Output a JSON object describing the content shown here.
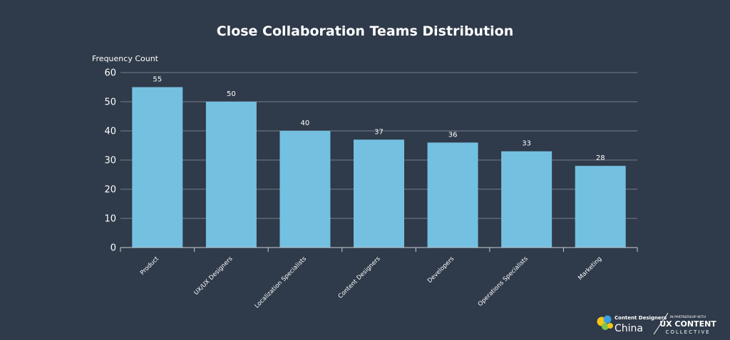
{
  "chart_data": {
    "type": "bar",
    "title": "Close Collaboration Teams Distribution",
    "ylabel": "Frequency Count",
    "xlabel": "",
    "ylim": [
      0,
      60
    ],
    "yticks": [
      0,
      10,
      20,
      30,
      40,
      50,
      60
    ],
    "grid": true,
    "categories": [
      "Product",
      "UX/UX Designers",
      "Localization Specialists",
      "Content Designers",
      "Developers",
      "Operations Specialists",
      "Marketing"
    ],
    "values": [
      55,
      50,
      40,
      37,
      36,
      33,
      28
    ],
    "data_labels": [
      "55",
      "50",
      "40",
      "37",
      "36",
      "33",
      "28"
    ],
    "bar_color": "#74c0e0",
    "background_color": "#2f3a4a",
    "gridline_color": "#8e97a3"
  },
  "logos": {
    "left_top": "Content Designers",
    "left_bottom": "China",
    "right_small": "IN PARTNERSHIP WITH",
    "right_main": "UX CONTENT",
    "right_sub": "COLLECTIVE"
  }
}
